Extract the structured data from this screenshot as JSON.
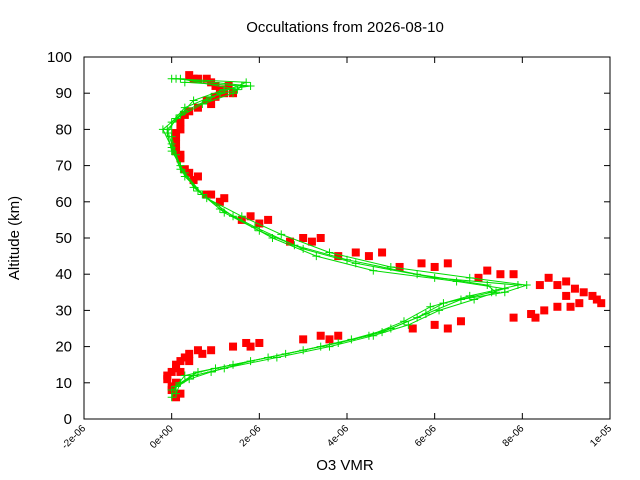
{
  "chart_data": {
    "type": "scatter",
    "title": "Occultations from 2026-08-10",
    "xlabel": "O3 VMR",
    "ylabel": "Altitude (km)",
    "xlim": [
      -2e-06,
      1e-05
    ],
    "ylim": [
      0,
      100
    ],
    "xticks": [
      -2e-06,
      0,
      2e-06,
      4e-06,
      6e-06,
      8e-06,
      1e-05
    ],
    "xtick_labels": [
      "-2e-06",
      "0e+00",
      "2e-06",
      "4e-06",
      "6e-06",
      "8e-06",
      "1e-05"
    ],
    "yticks": [
      0,
      10,
      20,
      30,
      40,
      50,
      60,
      70,
      80,
      90,
      100
    ],
    "ytick_labels": [
      "0",
      "10",
      "20",
      "30",
      "40",
      "50",
      "60",
      "70",
      "80",
      "90",
      "100"
    ],
    "grid": false,
    "legend": "none",
    "series": [
      {
        "color": "#ff0000",
        "marker": "square",
        "line": false,
        "profiles": [
          [
            [
              1e-07,
              6
            ],
            [
              0,
              9
            ],
            [
              -1e-07,
              12
            ],
            [
              1e-07,
              15
            ],
            [
              4e-07,
              18
            ],
            [
              1.4e-06,
              20
            ],
            [
              3e-06,
              22
            ],
            [
              5.5e-06,
              25
            ],
            [
              7.8e-06,
              28
            ],
            [
              8.8e-06,
              31
            ],
            [
              9e-06,
              34
            ],
            [
              8.8e-06,
              37
            ],
            [
              7.5e-06,
              40
            ],
            [
              6e-06,
              42
            ],
            [
              4.5e-06,
              45
            ],
            [
              3.2e-06,
              49
            ],
            [
              2e-06,
              54
            ],
            [
              1.1e-06,
              60
            ],
            [
              5e-07,
              66
            ],
            [
              2e-07,
              72
            ],
            [
              1e-07,
              78
            ],
            [
              3e-07,
              84
            ],
            [
              8e-07,
              88
            ],
            [
              1.1e-06,
              91
            ],
            [
              6e-07,
              94
            ]
          ],
          [
            [
              2e-07,
              7
            ],
            [
              1e-07,
              10
            ],
            [
              0,
              13
            ],
            [
              2e-07,
              16
            ],
            [
              6e-07,
              19
            ],
            [
              1.7e-06,
              21
            ],
            [
              3.4e-06,
              23
            ],
            [
              6e-06,
              26
            ],
            [
              8.2e-06,
              29
            ],
            [
              9.3e-06,
              32
            ],
            [
              9.4e-06,
              35
            ],
            [
              9e-06,
              38
            ],
            [
              7.8e-06,
              40
            ],
            [
              6.3e-06,
              43
            ],
            [
              4.8e-06,
              46
            ],
            [
              3.4e-06,
              50
            ],
            [
              2.2e-06,
              55
            ],
            [
              1.2e-06,
              61
            ],
            [
              6e-07,
              67
            ],
            [
              2e-07,
              73
            ],
            [
              1e-07,
              79
            ],
            [
              4e-07,
              85
            ],
            [
              1e-06,
              89
            ],
            [
              1.3e-06,
              92
            ],
            [
              8e-07,
              94
            ]
          ],
          [
            [
              0,
              8
            ],
            [
              -1e-07,
              11
            ],
            [
              1e-07,
              14
            ],
            [
              3e-07,
              17
            ],
            [
              9e-07,
              19
            ],
            [
              2e-06,
              21
            ],
            [
              3.8e-06,
              23
            ],
            [
              6.6e-06,
              27
            ],
            [
              8.5e-06,
              30
            ],
            [
              9.7e-06,
              33
            ],
            [
              9.2e-06,
              36
            ],
            [
              8.6e-06,
              39
            ],
            [
              7.2e-06,
              41
            ],
            [
              5.7e-06,
              43
            ],
            [
              4.2e-06,
              46
            ],
            [
              3e-06,
              50
            ],
            [
              1.8e-06,
              56
            ],
            [
              9e-07,
              62
            ],
            [
              4e-07,
              68
            ],
            [
              1e-07,
              74
            ],
            [
              2e-07,
              80
            ],
            [
              6e-07,
              86
            ],
            [
              1.2e-06,
              90
            ],
            [
              9e-07,
              93
            ],
            [
              4e-07,
              95
            ]
          ],
          [
            [
              1e-07,
              10
            ],
            [
              2e-07,
              13
            ],
            [
              4e-07,
              16
            ],
            [
              7e-07,
              18
            ],
            [
              1.8e-06,
              20
            ],
            [
              3.6e-06,
              22
            ],
            [
              6.3e-06,
              25
            ],
            [
              8.3e-06,
              28
            ],
            [
              9.1e-06,
              31
            ],
            [
              9.8e-06,
              32
            ],
            [
              9.6e-06,
              34
            ],
            [
              8.4e-06,
              37
            ],
            [
              7e-06,
              39
            ],
            [
              5.2e-06,
              42
            ],
            [
              3.8e-06,
              45
            ],
            [
              2.7e-06,
              49
            ],
            [
              1.6e-06,
              55
            ],
            [
              8e-07,
              62
            ],
            [
              3e-07,
              69
            ],
            [
              1e-07,
              76
            ],
            [
              2e-07,
              82
            ],
            [
              9e-07,
              87
            ],
            [
              1.4e-06,
              90
            ],
            [
              1e-06,
              92
            ],
            [
              5e-07,
              94
            ]
          ]
        ]
      },
      {
        "color": "#00dd00",
        "marker": "plus",
        "line": true,
        "profiles": [
          [
            [
              0,
              6
            ],
            [
              1e-07,
              9
            ],
            [
              3e-07,
              12
            ],
            [
              1e-06,
              14
            ],
            [
              2.2e-06,
              17
            ],
            [
              3.4e-06,
              20
            ],
            [
              4.5e-06,
              23
            ],
            [
              5.3e-06,
              27
            ],
            [
              5.9e-06,
              31
            ],
            [
              6.8e-06,
              34
            ],
            [
              7.9e-06,
              37
            ],
            [
              6e-06,
              39
            ],
            [
              4.2e-06,
              43
            ],
            [
              3e-06,
              47
            ],
            [
              2e-06,
              52
            ],
            [
              1.2e-06,
              57
            ],
            [
              6e-07,
              63
            ],
            [
              2e-07,
              69
            ],
            [
              0,
              75
            ],
            [
              -2e-07,
              80
            ],
            [
              2e-07,
              84
            ],
            [
              5e-07,
              88
            ],
            [
              1.2e-06,
              91
            ],
            [
              1.8e-06,
              92
            ],
            [
              1e-07,
              94
            ]
          ],
          [
            [
              1e-07,
              7
            ],
            [
              2e-07,
              10
            ],
            [
              6e-07,
              13
            ],
            [
              1.4e-06,
              15
            ],
            [
              2.6e-06,
              18
            ],
            [
              3.8e-06,
              21
            ],
            [
              4.8e-06,
              24
            ],
            [
              5.6e-06,
              28
            ],
            [
              6.2e-06,
              32
            ],
            [
              7.3e-06,
              35
            ],
            [
              7.6e-06,
              36
            ],
            [
              6.5e-06,
              38
            ],
            [
              4.6e-06,
              41
            ],
            [
              3.3e-06,
              45
            ],
            [
              2.3e-06,
              50
            ],
            [
              1.4e-06,
              56
            ],
            [
              7e-07,
              62
            ],
            [
              3e-07,
              68
            ],
            [
              0,
              74
            ],
            [
              -1e-07,
              79
            ],
            [
              1e-07,
              83
            ],
            [
              7e-07,
              87
            ],
            [
              1.4e-06,
              90
            ],
            [
              1.6e-06,
              92
            ],
            [
              3e-07,
              93
            ]
          ],
          [
            [
              0,
              8
            ],
            [
              4e-07,
              11
            ],
            [
              9e-07,
              13
            ],
            [
              1.8e-06,
              16
            ],
            [
              3e-06,
              19
            ],
            [
              4.1e-06,
              22
            ],
            [
              5e-06,
              25
            ],
            [
              5.8e-06,
              29
            ],
            [
              6.6e-06,
              33
            ],
            [
              7.6e-06,
              35
            ],
            [
              8.1e-06,
              37
            ],
            [
              6.8e-06,
              39
            ],
            [
              5e-06,
              42
            ],
            [
              3.6e-06,
              46
            ],
            [
              2.5e-06,
              51
            ],
            [
              1.6e-06,
              56
            ],
            [
              8e-07,
              61
            ],
            [
              3e-07,
              67
            ],
            [
              1e-07,
              73
            ],
            [
              0,
              78
            ],
            [
              0,
              82
            ],
            [
              3e-07,
              86
            ],
            [
              9e-07,
              89
            ],
            [
              1.5e-06,
              91
            ],
            [
              2e-07,
              94
            ]
          ],
          [
            [
              1e-07,
              9
            ],
            [
              5e-07,
              12
            ],
            [
              1.2e-06,
              14
            ],
            [
              2.4e-06,
              17
            ],
            [
              3.6e-06,
              20
            ],
            [
              4.6e-06,
              23
            ],
            [
              5.4e-06,
              26
            ],
            [
              6.1e-06,
              30
            ],
            [
              6.9e-06,
              33
            ],
            [
              7.4e-06,
              35
            ],
            [
              7.2e-06,
              37
            ],
            [
              5.6e-06,
              40
            ],
            [
              4e-06,
              44
            ],
            [
              2.8e-06,
              48
            ],
            [
              1.9e-06,
              53
            ],
            [
              1.1e-06,
              58
            ],
            [
              5e-07,
              64
            ],
            [
              2e-07,
              70
            ],
            [
              0,
              76
            ],
            [
              -1e-07,
              80
            ],
            [
              3e-07,
              85
            ],
            [
              8e-07,
              88
            ],
            [
              1.1e-06,
              90
            ],
            [
              1.7e-06,
              93
            ],
            [
              0,
              94
            ]
          ]
        ]
      }
    ]
  }
}
